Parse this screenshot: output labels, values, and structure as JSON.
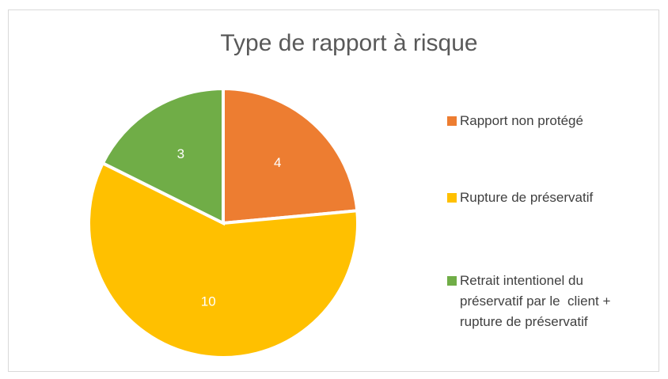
{
  "chart_data": {
    "type": "pie",
    "title": "Type de rapport à risque",
    "categories": [
      "Rapport non protégé",
      "Rupture de préservatif",
      "Retrait intentionel du préservatif par le  client + rupture de préservatif"
    ],
    "values": [
      4,
      10,
      3
    ],
    "colors": [
      "#ED7D31",
      "#FFC000",
      "#70AD47"
    ],
    "legend": "right"
  }
}
